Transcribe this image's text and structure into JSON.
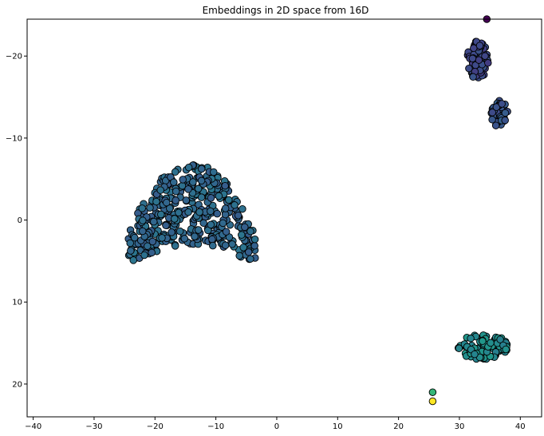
{
  "chart_data": {
    "type": "scatter",
    "title": "Embeddings in 2D space from 16D",
    "xlabel": "",
    "ylabel": "",
    "xlim": [
      -41,
      43.5
    ],
    "ylim": [
      -24.5,
      24
    ],
    "y_inverted": true,
    "grid": false,
    "legend": "none",
    "x_ticks": [
      -40,
      -30,
      -20,
      -10,
      0,
      10,
      20,
      30,
      40
    ],
    "y_ticks": [
      -20,
      -10,
      0,
      10,
      20
    ],
    "x_tick_labels": [
      "−40",
      "−30",
      "−20",
      "−10",
      "0",
      "10",
      "20",
      "30",
      "40"
    ],
    "y_tick_labels": [
      "−20",
      "−10",
      "0",
      "10",
      "20"
    ],
    "colormap": "viridis",
    "marker_edge_color": "#000000",
    "clusters": [
      {
        "center": [
          -14,
          -2
        ],
        "spread": [
          11,
          5.5
        ],
        "count": 420,
        "color_value": 0.34
      },
      {
        "center": [
          33,
          -19.5
        ],
        "spread": [
          1.8,
          2.4
        ],
        "count": 70,
        "color_value": 0.22
      },
      {
        "center": [
          36.5,
          -13
        ],
        "spread": [
          1.4,
          1.6
        ],
        "count": 45,
        "color_value": 0.26
      },
      {
        "center": [
          34,
          15.5
        ],
        "spread": [
          4.2,
          1.6
        ],
        "count": 100,
        "color_value": 0.48
      }
    ],
    "highlighted_points": [
      {
        "x": 34.5,
        "y": -24.5,
        "color": "#440154"
      },
      {
        "x": 25.6,
        "y": 21.0,
        "color": "#35b779"
      },
      {
        "x": 25.6,
        "y": 22.1,
        "color": "#fde725"
      }
    ]
  }
}
